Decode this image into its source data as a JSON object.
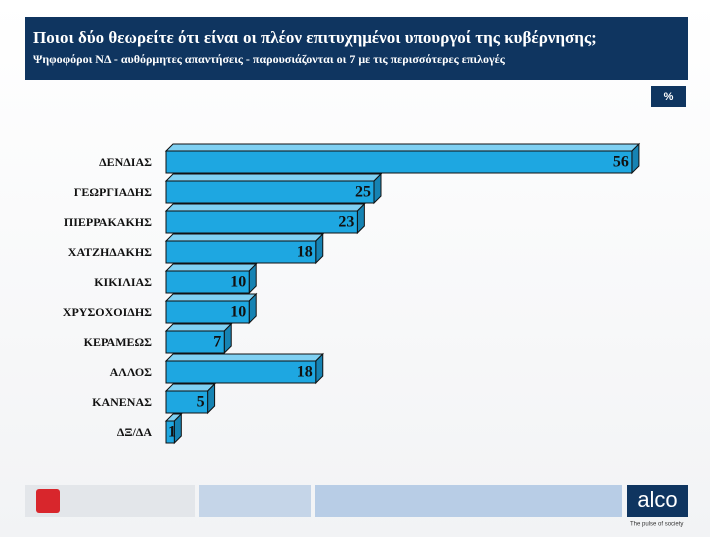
{
  "chart_data": {
    "type": "bar3d",
    "title": "Ποιοι δύο θεωρείτε ότι είναι οι πλέον επιτυχημένοι υπουργοί της κυβέρνησης;",
    "subtitle": "Ψηφοφόροι ΝΔ - αυθόρμητες απαντήσεις - παρουσιάζονται οι 7 με τις περισσότερες επιλογές",
    "unit": "%",
    "categories": [
      "ΔΕΝΔΙΑΣ",
      "ΓΕΩΡΓΙΑΔΗΣ",
      "ΠΙΕΡΡΑΚΑΚΗΣ",
      "ΧΑΤΖΗΔΑΚΗΣ",
      "ΚΙΚΙΛΙΑΣ",
      "ΧΡΥΣΟΧΟΙΔΗΣ",
      "ΚΕΡΑΜΕΩΣ",
      "ΑΛΛΟΣ",
      "ΚΑΝΕΝΑΣ",
      "ΔΞ/ΔΑ"
    ],
    "values": [
      56,
      25,
      23,
      18,
      10,
      10,
      7,
      18,
      5,
      1
    ],
    "color": "#1ea7e1"
  },
  "footer": {
    "logo": "alco",
    "tagline": "The pulse of society"
  }
}
